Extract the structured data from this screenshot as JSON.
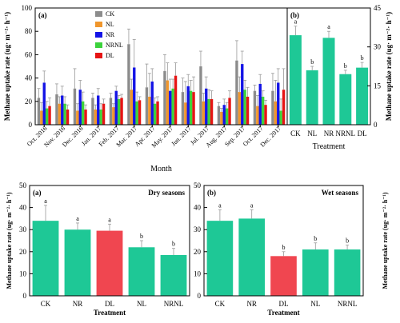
{
  "colors": {
    "CK": "#8c8c8c",
    "NL": "#f0962c",
    "NR": "#1414e6",
    "NRNL": "#3cd23c",
    "DL": "#e61414",
    "teal": "#1ec896",
    "red": "#f04650",
    "err": "#9a9a9a"
  },
  "chart_data": [
    {
      "id": "A",
      "type": "bar",
      "panel_label": "(a)",
      "xlabel": "Month",
      "ylabel": "Methane uptake rate (ug· m⁻²· h⁻¹)",
      "ylim": [
        0,
        100
      ],
      "yticks": [
        0,
        20,
        40,
        60,
        80,
        100
      ],
      "legend_position": "top-center",
      "categories": [
        "Oct. 2016",
        "Nov. 2016",
        "Dec. 2016",
        "Jan. 2017",
        "Feb. 2017",
        "Mar. 2017",
        "Apr. 2017",
        "May. 2017",
        "Jun. 2017",
        "Jul. 2017",
        "Aug. 2017",
        "Sep. 2017",
        "Oct. 2017",
        "Dec. 2017"
      ],
      "series": [
        {
          "name": "CK",
          "color_key": "CK",
          "values": [
            23,
            26,
            31,
            23,
            23,
            69,
            32,
            46,
            28,
            50,
            16,
            55,
            29,
            29
          ],
          "errors": [
            8,
            9,
            17,
            4,
            4,
            13,
            20,
            14,
            12,
            13,
            3,
            17,
            5,
            15
          ]
        },
        {
          "name": "NL",
          "color_key": "NL",
          "values": [
            12,
            18,
            12,
            13,
            15,
            30,
            24,
            38,
            19,
            20,
            11,
            28,
            16,
            20
          ],
          "errors": [
            7,
            6,
            6,
            4,
            3,
            9,
            20,
            15,
            18,
            7,
            3,
            13,
            9,
            18
          ]
        },
        {
          "name": "NR",
          "color_key": "NR",
          "values": [
            36,
            25,
            30,
            25,
            29,
            49,
            37,
            29,
            33,
            31,
            17,
            52,
            35,
            36
          ],
          "errors": [
            10,
            8,
            8,
            6,
            4,
            24,
            11,
            10,
            10,
            10,
            5,
            11,
            8,
            12
          ]
        },
        {
          "name": "NRNL",
          "color_key": "NRNL",
          "values": [
            14,
            18,
            20,
            13,
            22,
            20,
            18,
            31,
            29,
            22,
            14,
            30,
            24,
            12
          ],
          "errors": [
            6,
            6,
            8,
            5,
            3,
            8,
            5,
            8,
            9,
            8,
            5,
            8,
            5,
            10
          ]
        },
        {
          "name": "DL",
          "color_key": "DL",
          "values": [
            16,
            13,
            13,
            18,
            23,
            21,
            20,
            42,
            28,
            22,
            23,
            24,
            17,
            30
          ],
          "errors": [
            7,
            4,
            4,
            4,
            3,
            3,
            4,
            11,
            13,
            7,
            6,
            8,
            4,
            18
          ]
        }
      ]
    },
    {
      "id": "B",
      "type": "bar",
      "panel_label": "(b)",
      "xlabel": "Treatment",
      "ylabel": "Methane uptake rate (ug· m⁻²· h⁻¹)",
      "ylim": [
        0,
        45
      ],
      "yticks": [
        0,
        15,
        30,
        45
      ],
      "categories": [
        "CK",
        "NL",
        "NR",
        "NRNL",
        "DL"
      ],
      "values": [
        34.5,
        21,
        33.5,
        19.5,
        22
      ],
      "errors": [
        3.5,
        1.5,
        2.5,
        1.5,
        2
      ],
      "letters": [
        "a",
        "b",
        "a",
        "b",
        "b"
      ],
      "bar_color_keys": [
        "teal",
        "teal",
        "teal",
        "teal",
        "teal"
      ]
    },
    {
      "id": "C",
      "type": "bar",
      "panel_label": "(a)",
      "title": "Dry seasons",
      "xlabel": "Treatment",
      "ylabel": "Methane uptake rate (ug· m⁻²· h⁻¹)",
      "ylim": [
        0,
        50
      ],
      "yticks": [
        0,
        10,
        20,
        30,
        40,
        50
      ],
      "categories": [
        "CK",
        "NR",
        "DL",
        "NL",
        "NRNL"
      ],
      "values": [
        34,
        30,
        29.5,
        22,
        18.5
      ],
      "errors": [
        7,
        3,
        3,
        3,
        3
      ],
      "letters": [
        "a",
        "a",
        "a",
        "b",
        "b"
      ],
      "bar_color_keys": [
        "teal",
        "teal",
        "red",
        "teal",
        "teal"
      ]
    },
    {
      "id": "D",
      "type": "bar",
      "panel_label": "(b)",
      "title": "Wet seasons",
      "xlabel": "Treatment",
      "ylabel": "Methane uptake rate (ug· m⁻²· h⁻¹)",
      "ylim": [
        0,
        50
      ],
      "yticks": [
        0,
        10,
        20,
        30,
        40,
        50
      ],
      "categories": [
        "CK",
        "NR",
        "DL",
        "NL",
        "NRNL"
      ],
      "values": [
        34,
        35,
        18,
        21,
        21
      ],
      "errors": [
        5,
        4,
        2,
        3,
        2
      ],
      "letters": [
        "a",
        "a",
        "b",
        "b",
        "b"
      ],
      "bar_color_keys": [
        "teal",
        "teal",
        "red",
        "teal",
        "teal"
      ]
    }
  ]
}
